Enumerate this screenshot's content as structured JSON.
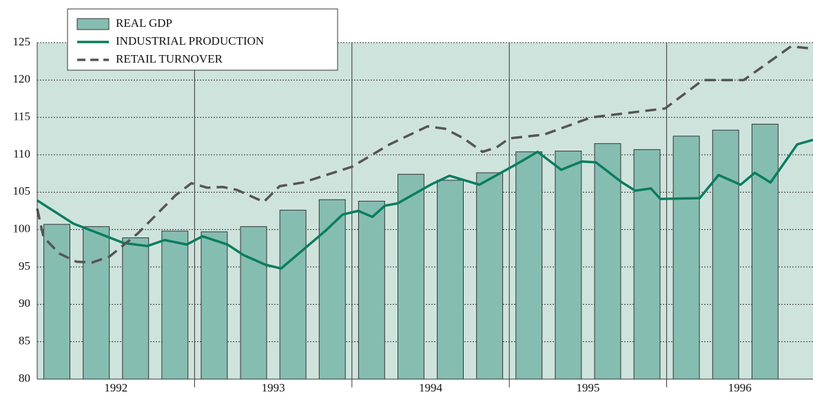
{
  "chart_data": {
    "type": "bar",
    "categories": [
      "1992",
      "1993",
      "1994",
      "1995",
      "1996"
    ],
    "xlim": [
      1992,
      1996.93
    ],
    "xticks": [
      1993,
      1994,
      1995,
      1996
    ],
    "ylim": [
      80,
      125
    ],
    "yticks": [
      80,
      85,
      90,
      95,
      100,
      105,
      110,
      115,
      120,
      125
    ],
    "grid": true,
    "legend": "top-left",
    "series": [
      {
        "name": "REAL GDP",
        "type": "bar",
        "color": "#86bdb1",
        "x": [
          1992.125,
          1992.375,
          1992.625,
          1992.875,
          1993.125,
          1993.375,
          1993.625,
          1993.875,
          1994.125,
          1994.375,
          1994.625,
          1994.875,
          1995.125,
          1995.375,
          1995.625,
          1995.875,
          1996.125,
          1996.375,
          1996.625
        ],
        "values": [
          100.7,
          100.4,
          98.9,
          99.8,
          99.7,
          100.4,
          102.6,
          104.0,
          103.8,
          107.4,
          106.6,
          107.6,
          110.4,
          110.5,
          111.5,
          110.7,
          112.5,
          113.3,
          114.1
        ]
      },
      {
        "name": "INDUSTRIAL PRODUCTION",
        "type": "line",
        "color": "#0a7d5f",
        "dashed": false,
        "x": [
          1992.0,
          1992.23,
          1992.55,
          1992.7,
          1992.81,
          1992.95,
          1993.05,
          1993.21,
          1993.31,
          1993.45,
          1993.55,
          1993.83,
          1993.94,
          1994.04,
          1994.13,
          1994.21,
          1994.29,
          1994.5,
          1994.62,
          1994.81,
          1995.05,
          1995.18,
          1995.33,
          1995.46,
          1995.55,
          1995.71,
          1995.8,
          1995.9,
          1995.96,
          1996.21,
          1996.33,
          1996.47,
          1996.56,
          1996.66,
          1996.83,
          1996.93
        ],
        "values": [
          103.9,
          100.8,
          98.2,
          97.8,
          98.6,
          98.0,
          99.1,
          98.0,
          96.6,
          95.3,
          94.8,
          99.8,
          102.0,
          102.5,
          101.7,
          103.2,
          103.5,
          106.0,
          107.2,
          106.0,
          108.8,
          110.4,
          108.0,
          109.1,
          109.0,
          106.4,
          105.2,
          105.5,
          104.1,
          104.2,
          107.3,
          106.0,
          107.6,
          106.3,
          111.4,
          112.0
        ]
      },
      {
        "name": "RETAIL TURNOVER",
        "type": "line",
        "color": "#555555",
        "dashed": true,
        "x": [
          1992.0,
          1992.04,
          1992.14,
          1992.25,
          1992.35,
          1992.46,
          1992.64,
          1992.88,
          1992.98,
          1993.08,
          1993.18,
          1993.27,
          1993.44,
          1993.54,
          1993.69,
          1994.0,
          1994.24,
          1994.48,
          1994.59,
          1994.71,
          1994.83,
          1994.92,
          1995.0,
          1995.22,
          1995.52,
          1995.99,
          1996.23,
          1996.49,
          1996.79,
          1996.93
        ],
        "values": [
          102.8,
          99.0,
          96.8,
          95.7,
          95.6,
          96.4,
          99.5,
          104.6,
          106.2,
          105.6,
          105.7,
          105.3,
          103.7,
          105.8,
          106.3,
          108.4,
          111.4,
          113.8,
          113.5,
          112.2,
          110.4,
          111.0,
          112.2,
          112.7,
          115.0,
          116.2,
          120.0,
          120.0,
          124.5,
          124.2
        ]
      }
    ]
  }
}
